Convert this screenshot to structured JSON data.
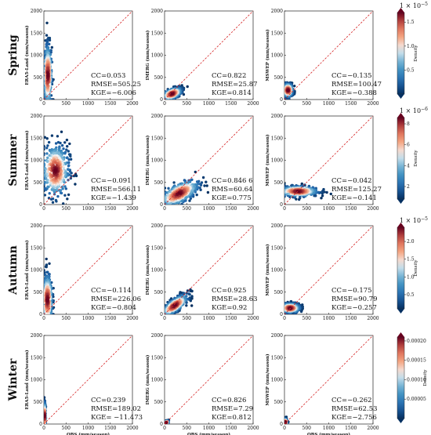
{
  "chart_data": {
    "type": "scatter",
    "layout": "4 rows (seasons) x 3 columns (products) of density scatter plots",
    "x_label": "OBS (mm/season)",
    "x_ticks": [
      "0",
      "500",
      "1000",
      "1500",
      "2000"
    ],
    "y_ticks": [
      "0",
      "500",
      "1000",
      "1500",
      "2000"
    ],
    "xlim": [
      0,
      2000
    ],
    "ylim": [
      0,
      2000
    ],
    "reference_line": "1:1 dashed red",
    "colormap": "RdBu_r",
    "columns": [
      "ERA5-Land (mm/season)",
      "IMERG (mm/season)",
      "MSWEP (mm/season)"
    ],
    "rows": [
      {
        "season": "Spring",
        "colorbar": {
          "exponent": "1 × 10",
          "power": "−5",
          "ticks": [
            "0.5",
            "1.0",
            "1.5"
          ],
          "range": [
            0.0,
            1.7
          ],
          "label": "Density"
        },
        "panels": [
          {
            "stats": [
              "CC=0.053",
              "RMSE=505.25",
              "KGE=−6.006"
            ],
            "cloud": {
              "cx": 90,
              "cy": 550,
              "sx": 45,
              "sy": 360,
              "rot": 0,
              "xmax": 250,
              "ymax": 1820
            }
          },
          {
            "stats": [
              "CC=0.822",
              "RMSE=25.87",
              "KGE=0.814"
            ],
            "cloud": {
              "cx": 170,
              "cy": 130,
              "sx": 110,
              "sy": 60,
              "rot": 0.35,
              "xmax": 520,
              "ymax": 320
            }
          },
          {
            "stats": [
              "CC=−0.135",
              "RMSE=100.47",
              "KGE=−0.388"
            ],
            "cloud": {
              "cx": 80,
              "cy": 210,
              "sx": 55,
              "sy": 80,
              "rot": 0,
              "xmax": 320,
              "ymax": 380
            }
          }
        ]
      },
      {
        "season": "Summer",
        "colorbar": {
          "exponent": "1 × 10",
          "power": "−6",
          "ticks": [
            "2",
            "4",
            "6",
            "8"
          ],
          "range": [
            0.8,
            8.6
          ],
          "label": "Density"
        },
        "panels": [
          {
            "stats": [
              "CC=−0.091",
              "RMSE=566.11",
              "KGE=−1.439"
            ],
            "cloud": {
              "cx": 260,
              "cy": 770,
              "sx": 160,
              "sy": 300,
              "rot": 0,
              "xmax": 1000,
              "ymax": 1720
            }
          },
          {
            "stats": [
              "CC=0.846 6",
              "RMS=60.64",
              "KGE=0.775"
            ],
            "cloud": {
              "cx": 330,
              "cy": 250,
              "sx": 230,
              "sy": 120,
              "rot": 0.45,
              "xmax": 1100,
              "ymax": 780
            }
          },
          {
            "stats": [
              "CC=−0.042",
              "RMSE=125.27",
              "KGE=−0.141"
            ],
            "cloud": {
              "cx": 310,
              "cy": 300,
              "sx": 230,
              "sy": 60,
              "rot": 0,
              "xmax": 1050,
              "ymax": 470
            }
          }
        ]
      },
      {
        "season": "Autumn",
        "colorbar": {
          "exponent": "1 × 10",
          "power": "−5",
          "ticks": [
            "0.5",
            "1.0",
            "1.5",
            "2.0"
          ],
          "range": [
            0.1,
            2.4
          ],
          "label": "Density"
        },
        "panels": [
          {
            "stats": [
              "CC=−0.114",
              "RMSE=226.06",
              "KGE=−0.804"
            ],
            "cloud": {
              "cx": 80,
              "cy": 330,
              "sx": 55,
              "sy": 300,
              "rot": 0,
              "xmax": 420,
              "ymax": 1250
            }
          },
          {
            "stats": [
              "CC=0.925",
              "RMSE=28.63",
              "KGE=0.92"
            ],
            "cloud": {
              "cx": 230,
              "cy": 200,
              "sx": 150,
              "sy": 80,
              "rot": 0.6,
              "xmax": 620,
              "ymax": 560
            }
          },
          {
            "stats": [
              "CC=−0.175",
              "RMSE=90.79",
              "KGE=−0.257"
            ],
            "cloud": {
              "cx": 130,
              "cy": 140,
              "sx": 110,
              "sy": 55,
              "rot": 0,
              "xmax": 560,
              "ymax": 310
            }
          }
        ]
      },
      {
        "season": "Winter",
        "colorbar": {
          "exponent": "",
          "power": "",
          "ticks": [
            "0.00005",
            "0.00010",
            "0.00015",
            "0.00020"
          ],
          "range": [
            0.0,
            0.00021
          ],
          "label": "Density"
        },
        "panels": [
          {
            "stats": [
              "CC=0.239",
              "RMSE=189.02",
              "KGE= −11.473"
            ],
            "cloud": {
              "cx": 15,
              "cy": 180,
              "sx": 12,
              "sy": 160,
              "rot": 0,
              "xmax": 60,
              "ymax": 600
            }
          },
          {
            "stats": [
              "CC=0.826",
              "RMSE=7.29",
              "KGE=0.812"
            ],
            "cloud": {
              "cx": 35,
              "cy": 30,
              "sx": 25,
              "sy": 18,
              "rot": 0.5,
              "xmax": 120,
              "ymax": 110
            }
          },
          {
            "stats": [
              "CC=−0.262",
              "RMSE=62.53",
              "KGE=−2.756"
            ],
            "cloud": {
              "cx": 20,
              "cy": 40,
              "sx": 18,
              "sy": 40,
              "rot": 0,
              "xmax": 90,
              "ymax": 160
            }
          }
        ]
      }
    ]
  }
}
